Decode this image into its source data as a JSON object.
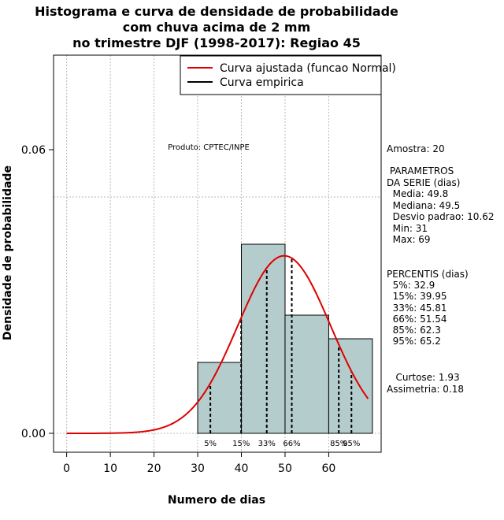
{
  "title": {
    "line1": "Histograma e curva de densidade de probabilidade",
    "line2": "com chuva acima de 2 mm",
    "line3": "no trimestre DJF (1998-2017): Regiao 45"
  },
  "legend": {
    "fitted": "Curva ajustada (funcao Normal)",
    "empirical": "Curva empirica",
    "colors": {
      "fitted": "#dd0000",
      "empirical": "#000000"
    }
  },
  "product": "Produto: CPTEC/INPE",
  "stats": {
    "sample": "Amostra: 20",
    "params_title1": " PARAMETROS",
    "params_title2": "DA SERIE (dias)",
    "mean": "  Media: 49.8",
    "median": "  Mediana: 49.5",
    "sd": "  Desvio padrao: 10.62",
    "min": "  Min: 31",
    "max": "  Max: 69",
    "perc_title": "PERCENTIS (dias)",
    "p5": "  5%: 32.9",
    "p15": "  15%: 39.95",
    "p33": "  33%: 45.81",
    "p66": "  66%: 51.54",
    "p85": "  85%: 62.3",
    "p95": "  95%: 65.2",
    "kurtosis": "   Curtose: 1.93",
    "skewness": "Assimetria: 0.18"
  },
  "chart_data": {
    "type": "bar",
    "title": "Histograma e curva de densidade de probabilidade com chuva acima de 2 mm no trimestre DJF (1998-2017): Regiao 45",
    "xlabel": "Numero de dias",
    "ylabel": "Densidade de probabilidade",
    "xlim": [
      -3,
      72
    ],
    "ylim": [
      -0.004,
      0.08
    ],
    "xticks": [
      0,
      10,
      20,
      30,
      40,
      50,
      60
    ],
    "xtick_labels": [
      "0",
      "10",
      "20",
      "30",
      "40",
      "50",
      "60"
    ],
    "yticks": [
      0.0,
      0.06
    ],
    "ytick_labels": [
      "0.00",
      "0.06"
    ],
    "grid": true,
    "hgrid": [
      0,
      0.05
    ],
    "bins": [
      {
        "from": 30,
        "to": 40,
        "density": 0.015
      },
      {
        "from": 40,
        "to": 50,
        "density": 0.04
      },
      {
        "from": 50,
        "to": 60,
        "density": 0.025
      },
      {
        "from": 60,
        "to": 70,
        "density": 0.02
      }
    ],
    "normal_fit": {
      "mean": 49.8,
      "sd": 10.62,
      "from": 0,
      "to": 69
    },
    "percentiles": [
      {
        "label": "5%",
        "value": 32.9
      },
      {
        "label": "15%",
        "value": 39.95
      },
      {
        "label": "33%",
        "value": 45.81
      },
      {
        "label": "66%",
        "value": 51.54
      },
      {
        "label": "85%",
        "value": 62.3
      },
      {
        "label": "95%",
        "value": 65.2
      }
    ],
    "legend_position": "top-right",
    "bar_color": "#b5cccc"
  }
}
